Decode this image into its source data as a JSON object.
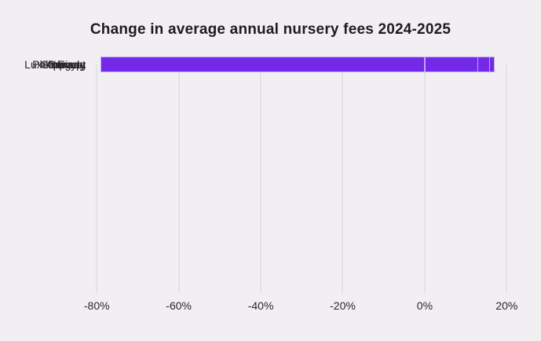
{
  "chart_data": {
    "type": "bar",
    "orientation": "horizontal",
    "title": "Change in average annual nursery fees 2024-2025",
    "categories": [
      "Egypt",
      "Germany",
      "Philippines",
      "Luxembourg",
      "Norway",
      "Canada"
    ],
    "values": [
      17,
      16,
      13,
      -17,
      -40,
      -79
    ],
    "unit": "%",
    "xlabel": "",
    "ylabel": "",
    "xlim": [
      -81,
      23
    ],
    "xticks": [
      -80,
      -60,
      -40,
      -20,
      0,
      20
    ],
    "xtick_labels": [
      "-80%",
      "-60%",
      "-40%",
      "-20%",
      "0%",
      "20%"
    ],
    "grid": "vertical-only",
    "legend": false,
    "colors": {
      "bar_fill": "#7329e8",
      "bar_outline": "#c5aef3",
      "background": "#f1eff2",
      "gridline": "#e4e2e6",
      "title_text": "#1e1c21",
      "label_text": "#29272c"
    }
  }
}
